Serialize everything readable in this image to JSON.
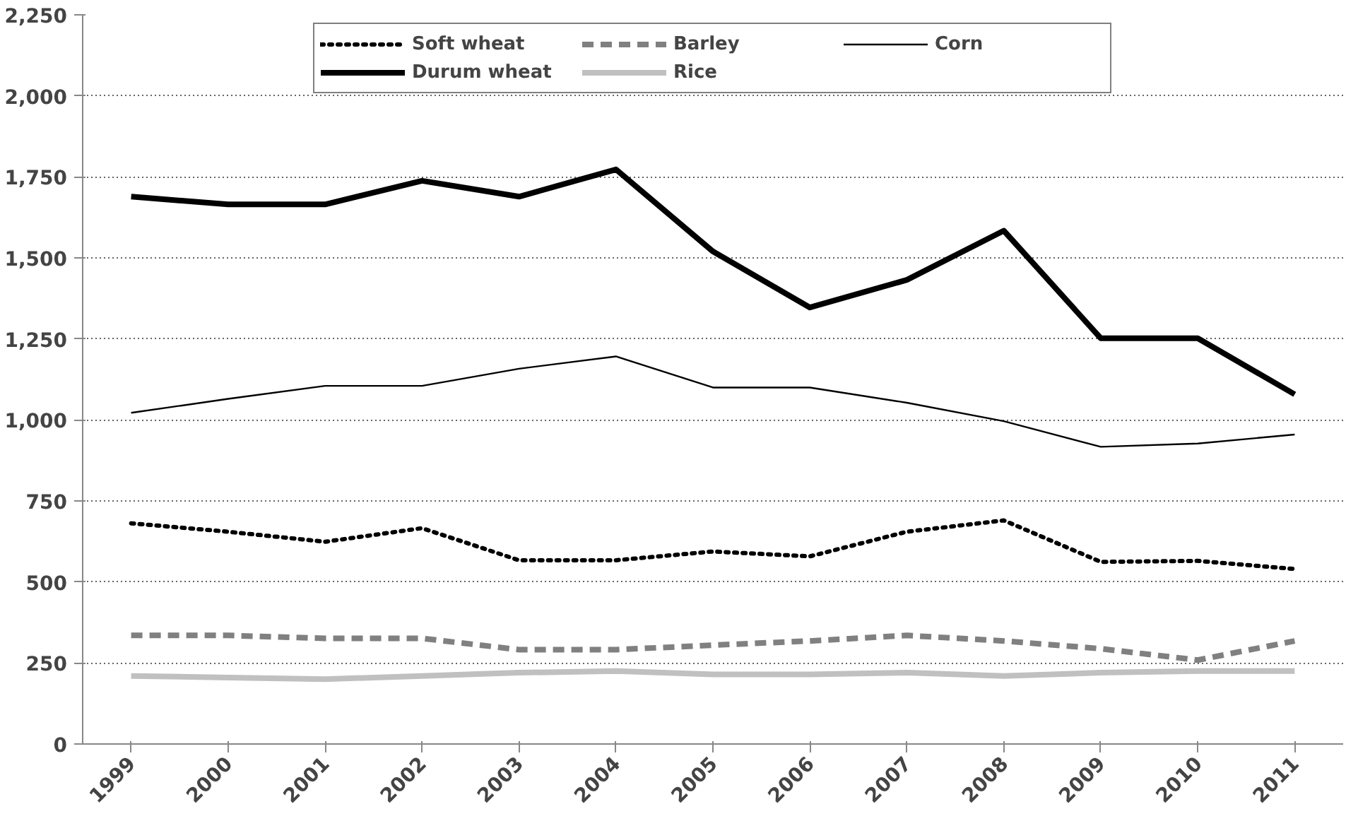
{
  "chart_data": {
    "type": "line",
    "categories": [
      "1999",
      "2000",
      "2001",
      "2002",
      "2003",
      "2004",
      "2005",
      "2006",
      "2007",
      "2008",
      "2009",
      "2010",
      "2011"
    ],
    "series": [
      {
        "name": "Soft wheat",
        "color": "#000000",
        "line_style": "dotted",
        "values": [
          681,
          655,
          624,
          666,
          567,
          567,
          594,
          579,
          655,
          690,
          562,
          565,
          540
        ]
      },
      {
        "name": "Durum wheat",
        "color": "#000000",
        "line_style": "solid",
        "values": [
          1689,
          1665,
          1665,
          1738,
          1689,
          1773,
          1520,
          1347,
          1432,
          1584,
          1252,
          1252,
          1079
        ]
      },
      {
        "name": "Barley",
        "color": "#808080",
        "line_style": "dashed",
        "values": [
          335,
          335,
          326,
          326,
          291,
          291,
          305,
          318,
          335,
          318,
          294,
          259,
          318
        ]
      },
      {
        "name": "Rice",
        "color": "#c0c0c0",
        "line_style": "solid",
        "values": [
          210,
          205,
          200,
          210,
          220,
          225,
          215,
          215,
          220,
          210,
          220,
          225,
          225
        ]
      },
      {
        "name": "Corn",
        "color": "#000000",
        "line_style": "solid",
        "values": [
          1022,
          1065,
          1105,
          1105,
          1158,
          1196,
          1100,
          1100,
          1053,
          996,
          917,
          927,
          955
        ]
      }
    ],
    "ylim": [
      0,
      2250
    ],
    "yticks": [
      0,
      250,
      500,
      750,
      {
        "value": 1000,
        "label": "1,000"
      },
      {
        "value": 1250,
        "label": "1,250"
      },
      {
        "value": 1500,
        "label": "1,500"
      },
      {
        "value": 1750,
        "label": "1,750"
      },
      {
        "value": 2000,
        "label": "2,000"
      },
      {
        "value": 2250,
        "label": "2,250"
      }
    ],
    "grid": "y",
    "legend": "top"
  }
}
